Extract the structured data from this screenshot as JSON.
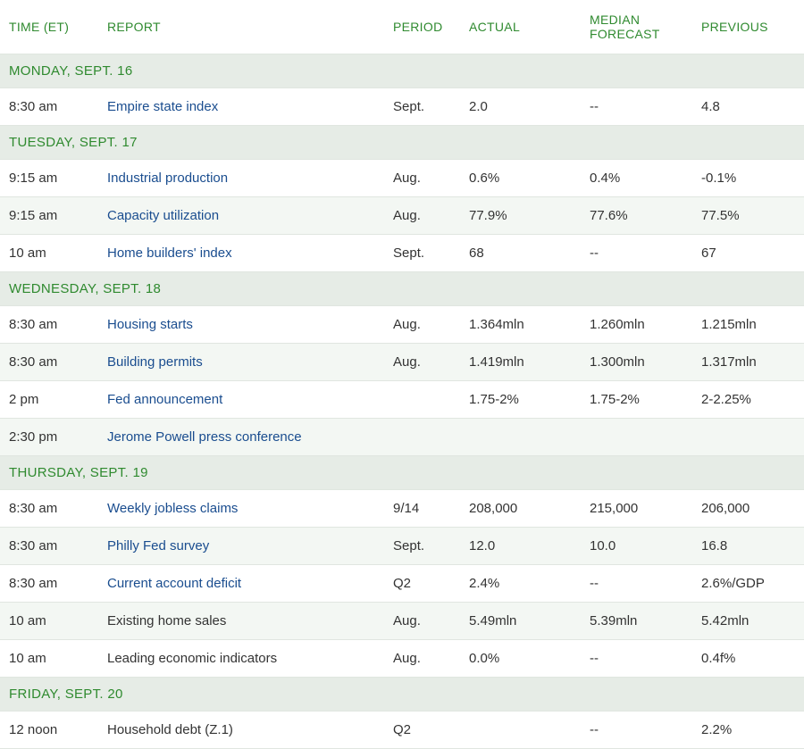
{
  "headers": {
    "time": "TIME (ET)",
    "report": "REPORT",
    "period": "PERIOD",
    "actual": "ACTUAL",
    "median": "MEDIAN FORECAST",
    "previous": "PREVIOUS"
  },
  "colors": {
    "header_text": "#2f8a2f",
    "link_text": "#1a4d8f",
    "row_alt_bg": "#f3f7f3",
    "day_bg": "#e6ece6",
    "border": "#e0e6e0",
    "body_text": "#333333"
  },
  "sections": [
    {
      "day": "MONDAY, SEPT. 16",
      "rows": [
        {
          "time": "8:30 am",
          "report": "Empire state index",
          "link": true,
          "period": "Sept.",
          "actual": "2.0",
          "median": "--",
          "previous": "4.8"
        }
      ]
    },
    {
      "day": "TUESDAY, SEPT. 17",
      "rows": [
        {
          "time": "9:15 am",
          "report": "Industrial production",
          "link": true,
          "period": "Aug.",
          "actual": "0.6%",
          "median": "0.4%",
          "previous": "-0.1%"
        },
        {
          "time": "9:15 am",
          "report": "Capacity utilization",
          "link": true,
          "period": "Aug.",
          "actual": "77.9%",
          "median": "77.6%",
          "previous": "77.5%"
        },
        {
          "time": "10 am",
          "report": "Home builders' index",
          "link": true,
          "period": "Sept.",
          "actual": "68",
          "median": "--",
          "previous": "67"
        }
      ]
    },
    {
      "day": "WEDNESDAY, SEPT. 18",
      "rows": [
        {
          "time": "8:30 am",
          "report": "Housing starts",
          "link": true,
          "period": "Aug.",
          "actual": "1.364mln",
          "median": "1.260mln",
          "previous": "1.215mln"
        },
        {
          "time": "8:30 am",
          "report": "Building permits",
          "link": true,
          "period": "Aug.",
          "actual": "1.419mln",
          "median": "1.300mln",
          "previous": "1.317mln"
        },
        {
          "time": "2 pm",
          "report": "Fed announcement",
          "link": true,
          "period": "",
          "actual": "1.75-2%",
          "median": "1.75-2%",
          "previous": "2-2.25%"
        },
        {
          "time": "2:30 pm",
          "report": "Jerome Powell press conference",
          "link": true,
          "period": "",
          "actual": "",
          "median": "",
          "previous": ""
        }
      ]
    },
    {
      "day": "THURSDAY, SEPT. 19",
      "rows": [
        {
          "time": "8:30 am",
          "report": "Weekly jobless claims",
          "link": true,
          "period": "9/14",
          "actual": "208,000",
          "median": "215,000",
          "previous": "206,000"
        },
        {
          "time": "8:30 am",
          "report": "Philly Fed survey",
          "link": true,
          "period": "Sept.",
          "actual": "12.0",
          "median": "10.0",
          "previous": "16.8"
        },
        {
          "time": "8:30 am",
          "report": "Current account deficit",
          "link": true,
          "period": "Q2",
          "actual": "2.4%",
          "median": "--",
          "previous": "2.6%/GDP"
        },
        {
          "time": "10 am",
          "report": "Existing home sales",
          "link": false,
          "period": "Aug.",
          "actual": "5.49mln",
          "median": "5.39mln",
          "previous": "5.42mln"
        },
        {
          "time": "10 am",
          "report": "Leading economic indicators",
          "link": false,
          "period": "Aug.",
          "actual": "0.0%",
          "median": "--",
          "previous": "0.4f%"
        }
      ]
    },
    {
      "day": "FRIDAY, SEPT. 20",
      "rows": [
        {
          "time": "12 noon",
          "report": "Household debt (Z.1)",
          "link": false,
          "period": "Q2",
          "actual": "",
          "median": "--",
          "previous": "2.2%"
        }
      ]
    }
  ]
}
